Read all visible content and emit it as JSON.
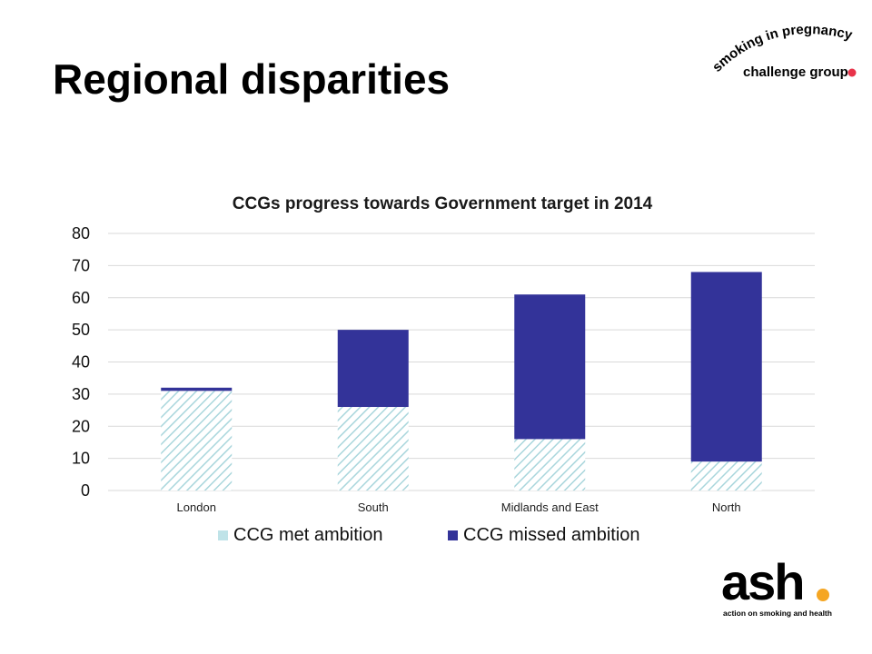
{
  "slide": {
    "title": "Regional disparities"
  },
  "logos": {
    "top": {
      "line1": "smoking in pregnancy",
      "line2": "challenge group",
      "dot_color": "#e8334a"
    },
    "bottom": {
      "wordmark": "ash",
      "tagline": "action on smoking and health",
      "dot_color": "#f5a623"
    }
  },
  "chart_data": {
    "type": "bar",
    "stacked": true,
    "title": "CCGs progress towards Government target in 2014",
    "xlabel": "",
    "ylabel": "",
    "categories": [
      "London",
      "South",
      "Midlands and East",
      "North"
    ],
    "series": [
      {
        "name": "CCG met ambition",
        "values": [
          31,
          26,
          16,
          9
        ],
        "color": "#bfe3e8",
        "pattern": "diagonal-hatch"
      },
      {
        "name": "CCG missed ambition",
        "values": [
          1,
          24,
          45,
          59
        ],
        "color": "#333399"
      }
    ],
    "ylim": [
      0,
      80
    ],
    "yticks": [
      0,
      10,
      20,
      30,
      40,
      50,
      60,
      70,
      80
    ],
    "grid": true,
    "legend_position": "bottom"
  }
}
